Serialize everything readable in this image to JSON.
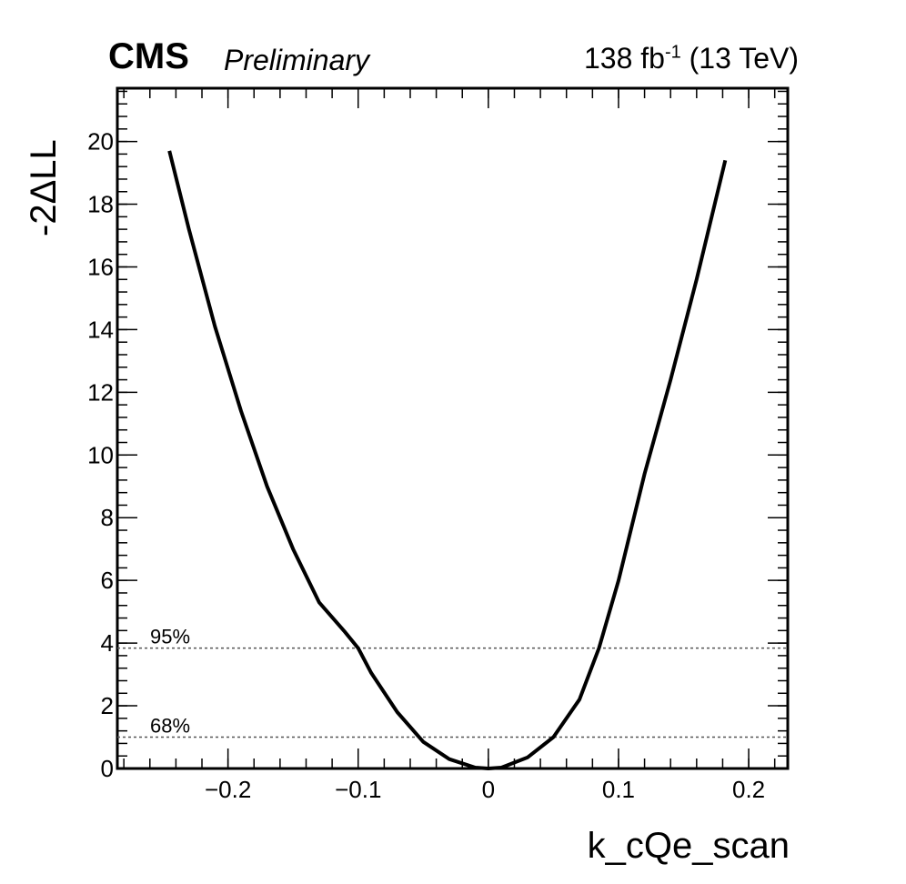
{
  "header": {
    "experiment": "CMS",
    "status": "Preliminary",
    "lumi_value": "138 fb",
    "lumi_exponent": "-1",
    "energy": "(13 TeV)"
  },
  "chart_data": {
    "type": "line",
    "xlabel": "k_cQe_scan",
    "ylabel": "-2ΔLL",
    "xlim": [
      -0.285,
      0.23
    ],
    "ylim": [
      0,
      21.7
    ],
    "x_ticks": [
      -0.2,
      -0.1,
      0,
      0.1,
      0.2
    ],
    "x_tick_labels": [
      "−0.2",
      "−0.1",
      "0",
      "0.1",
      "0.2"
    ],
    "y_ticks": [
      0,
      2,
      4,
      6,
      8,
      10,
      12,
      14,
      16,
      18,
      20
    ],
    "y_tick_labels": [
      "0",
      "2",
      "4",
      "6",
      "8",
      "10",
      "12",
      "14",
      "16",
      "18",
      "20"
    ],
    "grid": false,
    "series": [
      {
        "x": [
          -0.245,
          -0.23,
          -0.21,
          -0.19,
          -0.17,
          -0.15,
          -0.13,
          -0.11,
          -0.1,
          -0.09,
          -0.07,
          -0.05,
          -0.03,
          -0.01,
          0,
          0.01,
          0.03,
          0.05,
          0.07,
          0.085,
          0.1,
          0.12,
          0.14,
          0.16,
          0.182
        ],
        "y": [
          19.7,
          17.2,
          14.1,
          11.4,
          9.0,
          7.0,
          5.3,
          4.35,
          3.84,
          3.05,
          1.8,
          0.85,
          0.3,
          0.03,
          0,
          0.03,
          0.35,
          1.0,
          2.2,
          3.84,
          6.0,
          9.4,
          12.4,
          15.6,
          19.4
        ],
        "color": "#000000"
      }
    ],
    "reference_lines": [
      {
        "y": 3.84,
        "label": "95%"
      },
      {
        "y": 1.0,
        "label": "68%"
      }
    ]
  }
}
